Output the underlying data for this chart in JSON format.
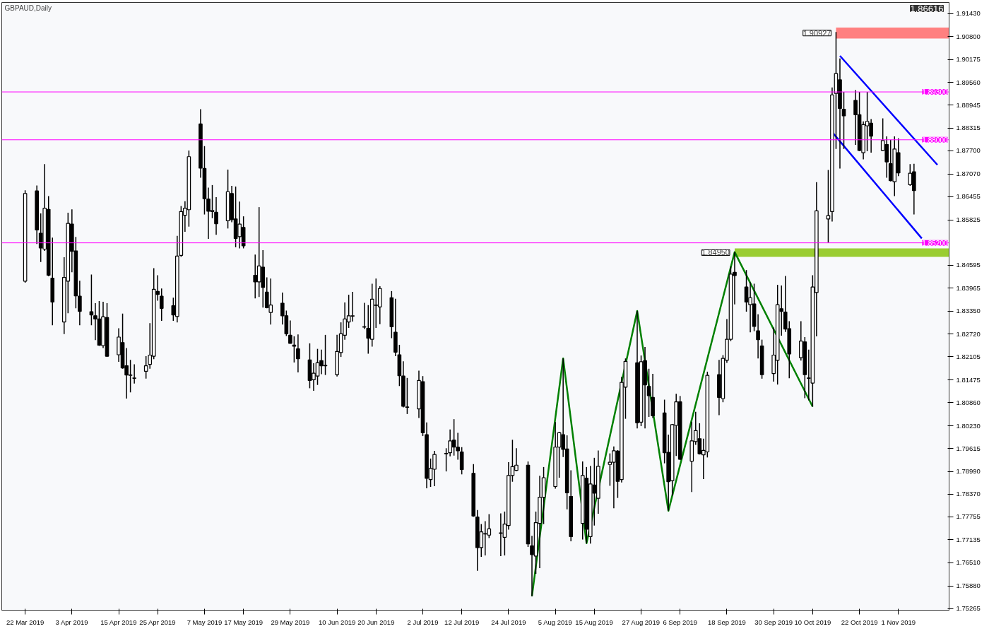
{
  "chart_data": {
    "type": "candlestick",
    "title": "GBPAUD,Daily",
    "annotations": [
      "1.86616"
    ],
    "x": [
      "2019-03-22",
      "2019-03-25",
      "2019-03-26",
      "2019-03-27",
      "2019-03-28",
      "2019-03-29",
      "2019-04-01",
      "2019-04-02",
      "2019-04-03",
      "2019-04-04",
      "2019-04-05",
      "2019-04-08",
      "2019-04-09",
      "2019-04-10",
      "2019-04-11",
      "2019-04-12",
      "2019-04-15",
      "2019-04-16",
      "2019-04-17",
      "2019-04-18",
      "2019-04-19",
      "2019-04-22",
      "2019-04-23",
      "2019-04-24",
      "2019-04-25",
      "2019-04-26",
      "2019-04-29",
      "2019-04-30",
      "2019-05-01",
      "2019-05-02",
      "2019-05-03",
      "2019-05-06",
      "2019-05-07",
      "2019-05-08",
      "2019-05-09",
      "2019-05-10",
      "2019-05-13",
      "2019-05-14",
      "2019-05-15",
      "2019-05-16",
      "2019-05-17",
      "2019-05-20",
      "2019-05-21",
      "2019-05-22",
      "2019-05-23",
      "2019-05-24",
      "2019-05-27",
      "2019-05-28",
      "2019-05-29",
      "2019-05-30",
      "2019-05-31",
      "2019-06-03",
      "2019-06-04",
      "2019-06-05",
      "2019-06-06",
      "2019-06-07",
      "2019-06-10",
      "2019-06-11",
      "2019-06-12",
      "2019-06-13",
      "2019-06-14",
      "2019-06-17",
      "2019-06-18",
      "2019-06-19",
      "2019-06-20",
      "2019-06-21",
      "2019-06-24",
      "2019-06-25",
      "2019-06-26",
      "2019-06-27",
      "2019-06-28",
      "2019-07-01",
      "2019-07-02",
      "2019-07-03",
      "2019-07-04",
      "2019-07-05",
      "2019-07-08",
      "2019-07-09",
      "2019-07-10",
      "2019-07-11",
      "2019-07-12",
      "2019-07-15",
      "2019-07-16",
      "2019-07-17",
      "2019-07-18",
      "2019-07-19",
      "2019-07-22",
      "2019-07-23",
      "2019-07-24",
      "2019-07-25",
      "2019-07-26",
      "2019-07-29",
      "2019-07-30",
      "2019-07-31",
      "2019-08-01",
      "2019-08-02",
      "2019-08-05",
      "2019-08-06",
      "2019-08-07",
      "2019-08-08",
      "2019-08-09",
      "2019-08-12",
      "2019-08-13",
      "2019-08-14",
      "2019-08-15",
      "2019-08-16",
      "2019-08-19",
      "2019-08-20",
      "2019-08-21",
      "2019-08-22",
      "2019-08-23",
      "2019-08-26",
      "2019-08-27",
      "2019-08-28",
      "2019-08-29",
      "2019-08-30",
      "2019-09-02",
      "2019-09-03",
      "2019-09-04",
      "2019-09-05",
      "2019-09-06",
      "2019-09-09",
      "2019-09-10",
      "2019-09-11",
      "2019-09-12",
      "2019-09-13",
      "2019-09-16",
      "2019-09-17",
      "2019-09-18",
      "2019-09-19",
      "2019-09-20",
      "2019-09-23",
      "2019-09-24",
      "2019-09-25",
      "2019-09-26",
      "2019-09-27",
      "2019-09-30",
      "2019-10-01",
      "2019-10-02",
      "2019-10-03",
      "2019-10-04",
      "2019-10-07",
      "2019-10-08",
      "2019-10-09",
      "2019-10-10",
      "2019-10-11",
      "2019-10-14",
      "2019-10-15",
      "2019-10-16",
      "2019-10-17",
      "2019-10-18",
      "2019-10-21",
      "2019-10-22",
      "2019-10-23",
      "2019-10-24",
      "2019-10-25",
      "2019-10-28",
      "2019-10-29",
      "2019-10-30",
      "2019-10-31",
      "2019-11-01",
      "2019-11-04",
      "2019-11-05"
    ],
    "ohlc": [
      [
        1.8416,
        1.8663,
        1.8412,
        1.8654
      ],
      [
        1.8661,
        1.8676,
        1.8517,
        1.8555
      ],
      [
        1.8546,
        1.86,
        1.8468,
        1.8506
      ],
      [
        1.8503,
        1.8734,
        1.8498,
        1.8614
      ],
      [
        1.8611,
        1.8647,
        1.8429,
        1.8432
      ],
      [
        1.8424,
        1.8534,
        1.8296,
        1.8359
      ],
      [
        1.8305,
        1.8481,
        1.8272,
        1.8426
      ],
      [
        1.8416,
        1.8602,
        1.8329,
        1.8573
      ],
      [
        1.8571,
        1.8611,
        1.844,
        1.8497
      ],
      [
        1.8498,
        1.8536,
        1.8342,
        1.8376
      ],
      [
        1.8375,
        1.8417,
        1.8296,
        1.8334
      ],
      [
        1.8333,
        1.8434,
        1.8296,
        1.8324
      ],
      [
        1.8322,
        1.8356,
        1.8256,
        1.8313
      ],
      [
        1.8313,
        1.8362,
        1.824,
        1.8242
      ],
      [
        1.8241,
        1.836,
        1.8234,
        1.8319
      ],
      [
        1.8317,
        1.8356,
        1.821,
        1.8212
      ],
      [
        1.8216,
        1.8288,
        1.8197,
        1.8264
      ],
      [
        1.8249,
        1.8328,
        1.8178,
        1.818
      ],
      [
        1.8186,
        1.8234,
        1.8097,
        1.8161
      ],
      [
        1.816,
        1.8202,
        1.8114,
        1.8161
      ],
      [
        1.8152,
        1.819,
        1.8138,
        1.8153
      ],
      [
        1.8171,
        1.8212,
        1.8151,
        1.8186
      ],
      [
        1.819,
        1.8302,
        1.8178,
        1.8215
      ],
      [
        1.8212,
        1.8451,
        1.8204,
        1.8394
      ],
      [
        1.8388,
        1.8432,
        1.8363,
        1.838
      ],
      [
        1.8375,
        1.8396,
        1.8308,
        1.8342
      ],
      [
        1.8349,
        1.8371,
        1.8308,
        1.8324
      ],
      [
        1.832,
        1.8539,
        1.8304,
        1.8484
      ],
      [
        1.8486,
        1.862,
        1.8482,
        1.8605
      ],
      [
        1.8595,
        1.8633,
        1.855,
        1.8614
      ],
      [
        1.861,
        1.8771,
        1.8564,
        1.8754
      ],
      [
        1.8843,
        1.8883,
        1.8697,
        1.8723
      ],
      [
        1.8722,
        1.8783,
        1.8597,
        1.864
      ],
      [
        1.8639,
        1.867,
        1.8531,
        1.8606
      ],
      [
        1.8605,
        1.8677,
        1.8587,
        1.8608
      ],
      [
        1.8603,
        1.8644,
        1.8542,
        1.8572
      ],
      [
        1.858,
        1.8719,
        1.8559,
        1.8659
      ],
      [
        1.8654,
        1.8675,
        1.8576,
        1.8583
      ],
      [
        1.8585,
        1.8673,
        1.8508,
        1.8532
      ],
      [
        1.8537,
        1.8632,
        1.8505,
        1.8571
      ],
      [
        1.8562,
        1.8592,
        1.8505,
        1.8512
      ],
      [
        1.8432,
        1.8488,
        1.8369,
        1.8414
      ],
      [
        1.8414,
        1.8617,
        1.8373,
        1.8457
      ],
      [
        1.8454,
        1.85,
        1.8344,
        1.8399
      ],
      [
        1.8386,
        1.8426,
        1.8342,
        1.8344
      ],
      [
        1.8331,
        1.8423,
        1.8298,
        1.8351
      ],
      [
        1.8356,
        1.8385,
        1.8298,
        1.8322
      ],
      [
        1.8322,
        1.8336,
        1.8267,
        1.8273
      ],
      [
        1.8269,
        1.8309,
        1.8246,
        1.8247
      ],
      [
        1.8242,
        1.8266,
        1.8195,
        1.8239
      ],
      [
        1.8232,
        1.8271,
        1.8168,
        1.8205
      ],
      [
        1.8202,
        1.8247,
        1.8125,
        1.8146
      ],
      [
        1.8148,
        1.8193,
        1.8118,
        1.8166
      ],
      [
        1.8158,
        1.8232,
        1.8134,
        1.8194
      ],
      [
        1.82,
        1.823,
        1.8163,
        1.8186
      ],
      [
        1.8186,
        1.827,
        1.8161,
        1.8187
      ],
      [
        1.8162,
        1.827,
        1.8157,
        1.8225
      ],
      [
        1.8222,
        1.8304,
        1.821,
        1.8273
      ],
      [
        1.8269,
        1.8358,
        1.8257,
        1.8313
      ],
      [
        1.8305,
        1.8379,
        1.8289,
        1.8322
      ],
      [
        1.8321,
        1.8387,
        1.8306,
        1.8322
      ],
      [
        1.8292,
        1.8357,
        1.8286,
        1.8291
      ],
      [
        1.8288,
        1.8351,
        1.8219,
        1.8261
      ],
      [
        1.8258,
        1.8409,
        1.8238,
        1.8367
      ],
      [
        1.8351,
        1.8423,
        1.8289,
        1.835
      ],
      [
        1.8346,
        1.8402,
        1.8299,
        1.8396
      ],
      [
        1.8371,
        1.8389,
        1.8261,
        1.8292
      ],
      [
        1.8277,
        1.8368,
        1.8212,
        1.8223
      ],
      [
        1.8216,
        1.8243,
        1.8131,
        1.8159
      ],
      [
        1.8158,
        1.8198,
        1.8073,
        1.8076
      ],
      [
        1.8074,
        1.8153,
        1.8055,
        1.8073
      ],
      [
        1.8069,
        1.8173,
        1.8044,
        1.8146
      ],
      [
        1.8143,
        1.8158,
        1.7995,
        1.8004
      ],
      [
        1.7999,
        1.8032,
        1.7853,
        1.788
      ],
      [
        1.7877,
        1.7934,
        1.7857,
        1.7907
      ],
      [
        1.7905,
        1.7955,
        1.7859,
        1.7945
      ],
      [
        1.7947,
        1.7962,
        1.7899,
        1.7948
      ],
      [
        1.795,
        1.8013,
        1.794,
        1.7982
      ],
      [
        1.7984,
        1.8041,
        1.7942,
        1.7965
      ],
      [
        1.7965,
        1.8004,
        1.7931,
        1.7955
      ],
      [
        1.7952,
        1.7965,
        1.7891,
        1.7904
      ],
      [
        1.7894,
        1.7919,
        1.7776,
        1.7778
      ],
      [
        1.7775,
        1.7794,
        1.7629,
        1.7692
      ],
      [
        1.7692,
        1.7756,
        1.7667,
        1.7735
      ],
      [
        1.7729,
        1.7764,
        1.7671,
        1.773
      ],
      [
        1.7726,
        1.7783,
        1.7718,
        1.7743
      ],
      [
        1.7732,
        1.7785,
        1.7669,
        1.7731
      ],
      [
        1.772,
        1.779,
        1.7671,
        1.7756
      ],
      [
        1.7752,
        1.7924,
        1.7741,
        1.7888
      ],
      [
        1.7888,
        1.7985,
        1.7871,
        1.7912
      ],
      [
        1.7902,
        1.7962,
        1.79,
        1.7916
      ],
      [
        1.7916,
        1.7926,
        1.7694,
        1.7702
      ],
      [
        1.7697,
        1.7724,
        1.756,
        1.7673
      ],
      [
        1.7669,
        1.779,
        1.7621,
        1.776
      ],
      [
        1.7758,
        1.7887,
        1.7636,
        1.7829
      ],
      [
        1.7829,
        1.7911,
        1.7756,
        1.7882
      ],
      [
        1.7858,
        1.8033,
        1.7852,
        1.7965
      ],
      [
        1.7965,
        1.8006,
        1.7882,
        1.8004
      ],
      [
        1.7999,
        1.8206,
        1.7938,
        1.7959
      ],
      [
        1.796,
        1.7997,
        1.7796,
        1.7841
      ],
      [
        1.7831,
        1.7902,
        1.7709,
        1.7722
      ],
      [
        1.7758,
        1.7926,
        1.7714,
        1.7888
      ],
      [
        1.7881,
        1.7911,
        1.7704,
        1.7742
      ],
      [
        1.7722,
        1.7914,
        1.7703,
        1.7865
      ],
      [
        1.7862,
        1.7936,
        1.7752,
        1.784
      ],
      [
        1.7826,
        1.7956,
        1.7784,
        1.7913
      ],
      [
        1.7918,
        1.7948,
        1.786,
        1.7924
      ],
      [
        1.7924,
        1.7967,
        1.7799,
        1.7955
      ],
      [
        1.7954,
        1.7957,
        1.7827,
        1.7872
      ],
      [
        1.7877,
        1.8156,
        1.7869,
        1.8141
      ],
      [
        1.8128,
        1.8206,
        1.8042,
        1.8198
      ],
      [
        1.8194,
        1.8335,
        1.8016,
        1.8031
      ],
      [
        1.8033,
        1.8214,
        1.8022,
        1.8197
      ],
      [
        1.82,
        1.8237,
        1.8016,
        1.8134
      ],
      [
        1.813,
        1.8178,
        1.8047,
        1.8105
      ],
      [
        1.81,
        1.8164,
        1.8044,
        1.805
      ],
      [
        1.8058,
        1.8094,
        1.7921,
        1.795
      ],
      [
        1.7951,
        1.7999,
        1.7792,
        1.7871
      ],
      [
        1.7874,
        1.8028,
        1.7833,
        1.8026
      ],
      [
        1.8024,
        1.811,
        1.7941,
        1.8088
      ],
      [
        1.8088,
        1.8104,
        1.793,
        1.7932
      ],
      [
        1.7927,
        1.8034,
        1.7843,
        1.7982
      ],
      [
        1.798,
        1.8061,
        1.7971,
        1.801
      ],
      [
        1.7988,
        1.803,
        1.7945,
        1.7947
      ],
      [
        1.7944,
        1.7988,
        1.7878,
        1.7956
      ],
      [
        1.7952,
        1.817,
        1.7937,
        1.816
      ],
      [
        1.8162,
        1.8202,
        1.8052,
        1.81
      ],
      [
        1.8097,
        1.8215,
        1.8087,
        1.8206
      ],
      [
        1.8201,
        1.8313,
        1.8194,
        1.8258
      ],
      [
        1.8258,
        1.8456,
        1.8253,
        1.8435
      ],
      [
        1.844,
        1.8495,
        1.8353,
        1.8431
      ],
      [
        1.84,
        1.8446,
        1.8333,
        1.8359
      ],
      [
        1.8352,
        1.8413,
        1.8277,
        1.8371
      ],
      [
        1.8354,
        1.8409,
        1.828,
        1.8293
      ],
      [
        1.8281,
        1.8326,
        1.8206,
        1.8257
      ],
      [
        1.824,
        1.8257,
        1.8151,
        1.8162
      ],
      [
        1.8165,
        1.829,
        1.8143,
        1.8215
      ],
      [
        1.8201,
        1.8406,
        1.8135,
        1.8352
      ],
      [
        1.8341,
        1.8404,
        1.8268,
        1.8334
      ],
      [
        1.8332,
        1.843,
        1.8278,
        1.8286
      ],
      [
        1.8287,
        1.8307,
        1.8152,
        1.8218
      ],
      [
        1.8208,
        1.8307,
        1.82,
        1.8253
      ],
      [
        1.8251,
        1.8264,
        1.8098,
        1.8162
      ],
      [
        1.8153,
        1.823,
        1.8092,
        1.8152
      ],
      [
        1.8139,
        1.8432,
        1.8075,
        1.84
      ],
      [
        1.8385,
        1.8685,
        1.8266,
        1.8607
      ],
      [
        1.8585,
        1.8718,
        1.8521,
        1.8594
      ],
      [
        1.8605,
        1.8942,
        1.8578,
        1.8922
      ],
      [
        1.8926,
        1.90927,
        1.8775,
        1.898
      ],
      [
        1.8963,
        1.9021,
        1.8722,
        1.8885
      ],
      [
        1.8883,
        1.893,
        1.8775,
        1.8865
      ],
      [
        1.8907,
        1.8935,
        1.8786,
        1.8868
      ],
      [
        1.8868,
        1.893,
        1.8769,
        1.8771
      ],
      [
        1.8765,
        1.885,
        1.8747,
        1.8841
      ],
      [
        1.8838,
        1.893,
        1.8769,
        1.885
      ],
      [
        1.8845,
        1.8856,
        1.8765,
        1.881
      ],
      [
        1.8771,
        1.8858,
        1.877,
        1.8798
      ],
      [
        1.8787,
        1.8809,
        1.8697,
        1.874
      ],
      [
        1.8735,
        1.88,
        1.8687,
        1.8689
      ],
      [
        1.8686,
        1.8809,
        1.8647,
        1.8775
      ],
      [
        1.8765,
        1.8804,
        1.8701,
        1.871
      ],
      [
        1.8678,
        1.8734,
        1.8675,
        1.8709
      ],
      [
        1.8713,
        1.8735,
        1.8597,
        1.8662
      ]
    ],
    "series": [
      {
        "type": "line",
        "color": "#008000",
        "x": [
          "2019-07-30",
          "2019-08-07",
          "2019-08-13",
          "2019-08-26",
          "2019-09-03",
          "2019-09-20",
          "2019-10-10"
        ],
        "values": [
          1.756,
          1.8206,
          1.7704,
          1.8335,
          1.7792,
          1.8495,
          1.8075
        ]
      },
      {
        "type": "line",
        "color": "#0000ff",
        "x": [
          "2019-10-17",
          "2019-11-11"
        ],
        "values": [
          1.9028,
          1.8732
        ]
      },
      {
        "type": "line",
        "color": "#0000ff",
        "x": [
          "2019-10-15",
          "2019-11-07"
        ],
        "values": [
          1.8821,
          1.8532
        ]
      }
    ],
    "ref_lines": [
      {
        "axis": "y",
        "value": 1.893,
        "label": "1.89300",
        "color": "#ff00ff"
      },
      {
        "axis": "y",
        "value": 1.88,
        "label": "1.88000",
        "color": "#ff00ff"
      },
      {
        "axis": "y",
        "value": 1.852,
        "label": "1.85200",
        "color": "#ff00ff"
      }
    ],
    "bands": [
      {
        "axis": "y",
        "from": 1.9075,
        "to": 1.9105,
        "label": "1.90927",
        "color": "#ff8080"
      },
      {
        "axis": "y",
        "from": 1.8482,
        "to": 1.8505,
        "label": "1.84950",
        "color": "#9acd32"
      }
    ],
    "xlim": [
      "2019-03-16",
      "2019-11-14"
    ],
    "xticks": [
      {
        "value": "2019-03-22",
        "label": "22 Mar 2019"
      },
      {
        "value": "2019-04-03",
        "label": "3 Apr 2019"
      },
      {
        "value": "2019-04-15",
        "label": "15 Apr 2019"
      },
      {
        "value": "2019-04-25",
        "label": "25 Apr 2019"
      },
      {
        "value": "2019-05-07",
        "label": "7 May 2019"
      },
      {
        "value": "2019-05-17",
        "label": "17 May 2019"
      },
      {
        "value": "2019-05-29",
        "label": "29 May 2019"
      },
      {
        "value": "2019-06-10",
        "label": "10 Jun 2019"
      },
      {
        "value": "2019-06-20",
        "label": "20 Jun 2019"
      },
      {
        "value": "2019-07-02",
        "label": "2 Jul 2019"
      },
      {
        "value": "2019-07-12",
        "label": "12 Jul 2019"
      },
      {
        "value": "2019-07-24",
        "label": "24 Jul 2019"
      },
      {
        "value": "2019-08-05",
        "label": "5 Aug 2019"
      },
      {
        "value": "2019-08-15",
        "label": "15 Aug 2019"
      },
      {
        "value": "2019-08-27",
        "label": "27 Aug 2019"
      },
      {
        "value": "2019-09-06",
        "label": "6 Sep 2019"
      },
      {
        "value": "2019-09-18",
        "label": "18 Sep 2019"
      },
      {
        "value": "2019-09-30",
        "label": "30 Sep 2019"
      },
      {
        "value": "2019-10-10",
        "label": "10 Oct 2019"
      },
      {
        "value": "2019-10-22",
        "label": "22 Oct 2019"
      },
      {
        "value": "2019-11-01",
        "label": "1 Nov 2019"
      }
    ],
    "ylim": [
      1.7522,
      1.9173
    ],
    "yticks": [
      {
        "value": 1.9143,
        "label": "1.91430"
      },
      {
        "value": 1.908,
        "label": "1.90800"
      },
      {
        "value": 1.90175,
        "label": "1.90175"
      },
      {
        "value": 1.8956,
        "label": "1.89560"
      },
      {
        "value": 1.88945,
        "label": "1.88945"
      },
      {
        "value": 1.88315,
        "label": "1.88315"
      },
      {
        "value": 1.877,
        "label": "1.87700"
      },
      {
        "value": 1.8707,
        "label": "1.87070"
      },
      {
        "value": 1.86455,
        "label": "1.86455"
      },
      {
        "value": 1.85825,
        "label": "1.85825"
      },
      {
        "value": 1.84595,
        "label": "1.84595"
      },
      {
        "value": 1.83965,
        "label": "1.83965"
      },
      {
        "value": 1.8335,
        "label": "1.83350"
      },
      {
        "value": 1.8272,
        "label": "1.82720"
      },
      {
        "value": 1.82105,
        "label": "1.82105"
      },
      {
        "value": 1.81475,
        "label": "1.81475"
      },
      {
        "value": 1.8086,
        "label": "1.80860"
      },
      {
        "value": 1.8023,
        "label": "1.80230"
      },
      {
        "value": 1.79615,
        "label": "1.79615"
      },
      {
        "value": 1.7899,
        "label": "1.78990"
      },
      {
        "value": 1.7837,
        "label": "1.78370"
      },
      {
        "value": 1.77755,
        "label": "1.77755"
      },
      {
        "value": 1.77135,
        "label": "1.77135"
      },
      {
        "value": 1.7651,
        "label": "1.76510"
      },
      {
        "value": 1.7588,
        "label": "1.75880"
      },
      {
        "value": 1.75265,
        "label": "1.75265"
      }
    ]
  }
}
